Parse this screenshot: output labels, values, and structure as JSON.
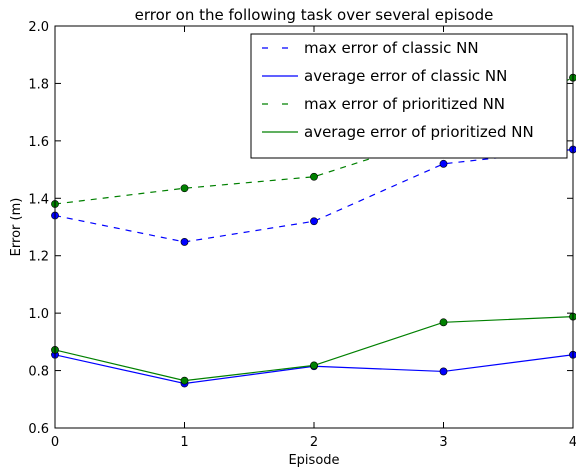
{
  "chart_data": {
    "type": "line",
    "title": "error on the following task over several episode",
    "xlabel": "Episode",
    "ylabel": "Error (m)",
    "xlim": [
      0,
      4
    ],
    "ylim": [
      0.6,
      2.0
    ],
    "xticks": [
      0,
      1,
      2,
      3,
      4
    ],
    "yticks": [
      0.6,
      0.8,
      1.0,
      1.2,
      1.4,
      1.6,
      1.8,
      2.0
    ],
    "ytick_labels": [
      "0.6",
      "0.8",
      "1.0",
      "1.2",
      "1.4",
      "1.6",
      "1.8",
      "2.0"
    ],
    "grid": false,
    "legend_position": "top-right",
    "x": [
      0,
      1,
      2,
      3,
      4
    ],
    "series": [
      {
        "name": "max error of classic NN",
        "values": [
          1.34,
          1.248,
          1.32,
          1.52,
          1.57
        ],
        "color": "#0000ff",
        "line_style": "dashed",
        "marker": "circle",
        "marker_fill": "#0000ff"
      },
      {
        "name": "average error of classic NN",
        "values": [
          0.855,
          0.755,
          0.815,
          0.797,
          0.855
        ],
        "color": "#0000ff",
        "line_style": "solid",
        "marker": "circle",
        "marker_fill": "#0000ff"
      },
      {
        "name": "max error of prioritized NN",
        "values": [
          1.38,
          1.435,
          1.475,
          1.62,
          1.82
        ],
        "color": "#008000",
        "line_style": "dashed",
        "marker": "circle",
        "marker_fill": "#008000"
      },
      {
        "name": "average error of prioritized NN",
        "values": [
          0.872,
          0.765,
          0.818,
          0.968,
          0.988
        ],
        "color": "#008000",
        "line_style": "solid",
        "marker": "circle",
        "marker_fill": "#008000"
      }
    ]
  }
}
